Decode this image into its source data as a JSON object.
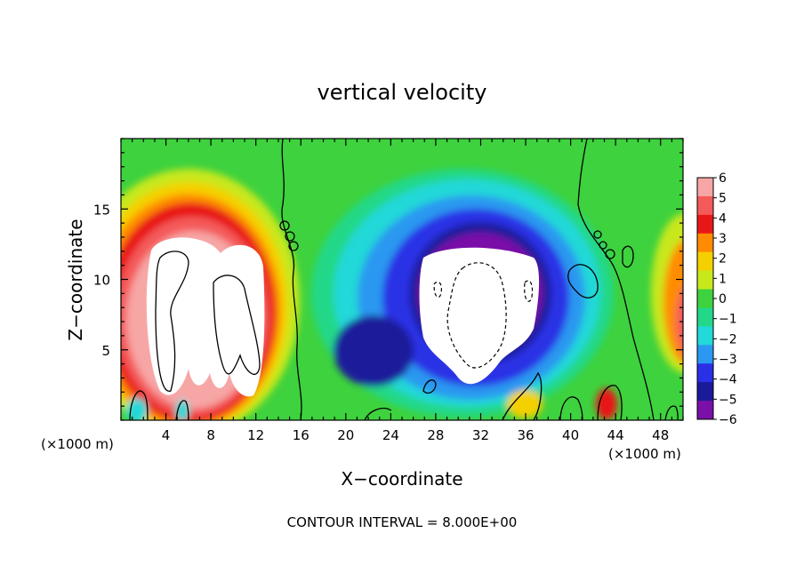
{
  "chart_data": {
    "type": "heatmap",
    "title": "vertical velocity",
    "xlabel": "X−coordinate",
    "ylabel": "Z−coordinate",
    "x_unit": "(×1000 m)",
    "x_unit_right": "(×1000 m)",
    "xlim": [
      0,
      50
    ],
    "ylim": [
      0,
      20
    ],
    "x_ticks": [
      "4",
      "8",
      "12",
      "16",
      "20",
      "24",
      "28",
      "32",
      "36",
      "40",
      "44",
      "48"
    ],
    "x_tick_values": [
      4,
      8,
      12,
      16,
      20,
      24,
      28,
      32,
      36,
      40,
      44,
      48
    ],
    "y_ticks": [
      "5",
      "10",
      "15"
    ],
    "y_tick_values": [
      5,
      10,
      15
    ],
    "colorbar": {
      "labels": [
        "6",
        "5",
        "4",
        "3",
        "2",
        "1",
        "0",
        "−1",
        "−2",
        "−3",
        "−4",
        "−5",
        "−6"
      ],
      "values": [
        6,
        5,
        4,
        3,
        2,
        1,
        0,
        -1,
        -2,
        -3,
        -4,
        -5,
        -6
      ],
      "colors": [
        "#f7a6a6",
        "#f45a5a",
        "#e81818",
        "#ff8c00",
        "#f5d000",
        "#c8e81c",
        "#3ed23e",
        "#22d888",
        "#22d8d8",
        "#2a98f0",
        "#2a30e6",
        "#1a1a9a",
        "#7a10a8"
      ],
      "saturated_color": "#ffffff"
    },
    "footer": "CONTOUR INTERVAL = 8.000E+00",
    "contour_interval": 8.0,
    "features": [
      {
        "kind": "updraft",
        "cx": 4.8,
        "cz": 9.5,
        "rx": 6,
        "rz": 7,
        "value": 10
      },
      {
        "kind": "updraft",
        "cx": 9.8,
        "cz": 8.0,
        "rx": 4,
        "rz": 5,
        "value": 9
      },
      {
        "kind": "downdraft",
        "cx": 31,
        "cz": 9.5,
        "rx": 8,
        "rz": 7,
        "value": -10
      },
      {
        "kind": "updraft",
        "cx": 50,
        "cz": 7,
        "rx": 2,
        "rz": 6,
        "value": 5
      }
    ]
  }
}
